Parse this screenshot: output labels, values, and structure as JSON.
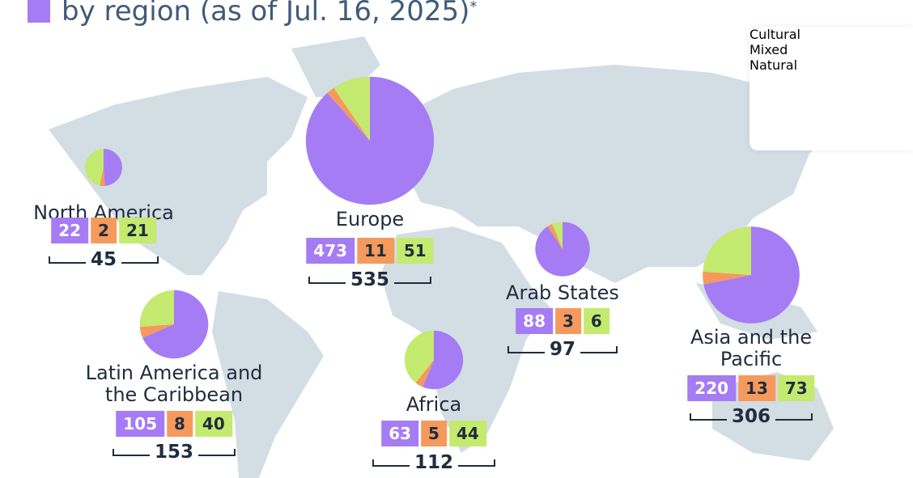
{
  "chart_data": {
    "type": "pie",
    "title": "by region (as of Jul. 16, 2025)",
    "title_note": "*",
    "categories": [
      "North America",
      "Europe",
      "Latin America and the Caribbean",
      "Africa",
      "Arab States",
      "Asia and the Pacific"
    ],
    "series": [
      {
        "name": "Cultural",
        "color": "#a57cf4",
        "values": [
          22,
          473,
          105,
          63,
          88,
          220
        ]
      },
      {
        "name": "Mixed",
        "color": "#f59a5c",
        "values": [
          2,
          11,
          8,
          5,
          3,
          13
        ]
      },
      {
        "name": "Natural",
        "color": "#c4ea6f",
        "values": [
          21,
          51,
          40,
          44,
          6,
          73
        ]
      }
    ],
    "totals": [
      45,
      535,
      153,
      112,
      97,
      306
    ]
  }
}
